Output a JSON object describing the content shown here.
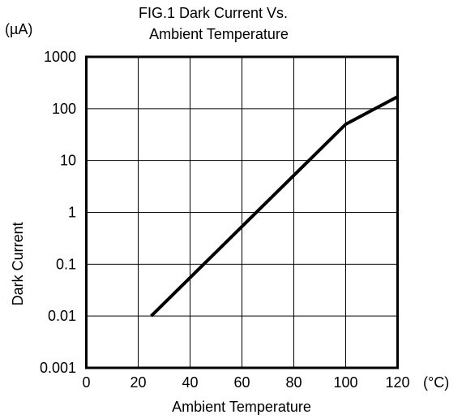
{
  "chart_data": {
    "type": "line",
    "title_line1": "FIG.1 Dark Current Vs.",
    "title_line2": "Ambient Temperature",
    "xlabel": "Ambient Temperature",
    "ylabel": "Dark Current",
    "x_unit": "(°C)",
    "y_unit": "(µA)",
    "y_scale": "log",
    "grid": true,
    "xlim": [
      0,
      120
    ],
    "ylim": [
      0.001,
      1000
    ],
    "x_ticks": [
      0,
      20,
      40,
      60,
      80,
      100,
      120
    ],
    "x_tick_labels": [
      "0",
      "20",
      "40",
      "60",
      "80",
      "100",
      "120"
    ],
    "y_ticks": [
      0.001,
      0.01,
      0.1,
      1,
      10,
      100,
      1000
    ],
    "y_tick_labels": [
      "0.001",
      "0.01",
      "0.1",
      "1",
      "10",
      "100",
      "1000"
    ],
    "series": [
      {
        "x": [
          25,
          100,
          120
        ],
        "y": [
          0.01,
          50,
          170
        ]
      }
    ]
  }
}
